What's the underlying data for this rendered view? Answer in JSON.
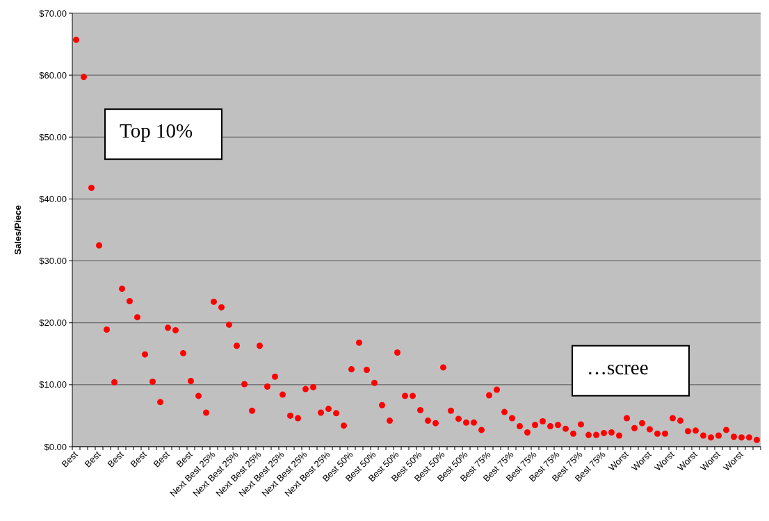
{
  "chart_data": {
    "type": "scatter",
    "ylabel": "Sales/Piece",
    "marker": "circle",
    "grid": "y",
    "categories": [
      "Best",
      null,
      null,
      "Best",
      null,
      null,
      "Best",
      null,
      null,
      "Best",
      null,
      null,
      "Best",
      null,
      null,
      "Best",
      null,
      null,
      "Next Best 25%",
      null,
      null,
      "Next Best 25%",
      null,
      null,
      "Next Best 25%",
      null,
      null,
      "Next Best 25%",
      null,
      null,
      "Next Best 25%",
      null,
      null,
      "Next Best 25%",
      null,
      null,
      "Best 50%",
      null,
      null,
      "Best 50%",
      null,
      null,
      "Best 50%",
      null,
      null,
      "Best 50%",
      null,
      null,
      "Best 50%",
      null,
      null,
      "Best 50%",
      null,
      null,
      "Best 75%",
      null,
      null,
      "Best 75%",
      null,
      null,
      "Best 75%",
      null,
      null,
      "Best 75%",
      null,
      null,
      "Best 75%",
      null,
      null,
      "Best 75%",
      null,
      null,
      "Worst",
      null,
      null,
      "Worst",
      null,
      null,
      "Worst",
      null,
      null,
      "Worst",
      null,
      null,
      "Worst",
      null,
      null,
      "Worst",
      null,
      null
    ],
    "series": [
      {
        "color": "#ff0000",
        "values": [
          65.7,
          59.7,
          41.8,
          32.5,
          18.9,
          10.4,
          25.5,
          23.5,
          20.9,
          14.9,
          10.5,
          7.2,
          19.2,
          18.8,
          15.1,
          10.6,
          8.2,
          5.5,
          23.4,
          22.5,
          19.7,
          16.3,
          10.1,
          5.8,
          16.3,
          9.7,
          11.3,
          8.4,
          5.0,
          4.6,
          9.3,
          9.6,
          5.5,
          6.1,
          5.4,
          3.4,
          12.5,
          16.8,
          12.4,
          10.3,
          6.7,
          4.2,
          15.2,
          8.2,
          8.2,
          5.9,
          4.2,
          3.8,
          12.8,
          5.8,
          4.5,
          3.9,
          3.9,
          2.7,
          8.3,
          9.2,
          5.6,
          4.6,
          3.3,
          2.3,
          3.5,
          4.1,
          3.3,
          3.5,
          2.9,
          2.1,
          3.6,
          1.9,
          1.9,
          2.2,
          2.3,
          1.8,
          4.6,
          3.0,
          3.8,
          2.8,
          2.1,
          2.1,
          4.6,
          4.2,
          2.5,
          2.6,
          1.8,
          1.5,
          1.8,
          2.7,
          1.6,
          1.5,
          1.5,
          1.1
        ]
      }
    ],
    "ylim": [
      0,
      70
    ],
    "yticks": [
      {
        "value": 0,
        "label": "$0.00"
      },
      {
        "value": 10,
        "label": "$10.00"
      },
      {
        "value": 20,
        "label": "$20.00"
      },
      {
        "value": 30,
        "label": "$30.00"
      },
      {
        "value": 40,
        "label": "$40.00"
      },
      {
        "value": 50,
        "label": "$50.00"
      },
      {
        "value": 60,
        "label": "$60.00"
      },
      {
        "value": 70,
        "label": "$70.00"
      }
    ],
    "annotations": [
      "Top 10%",
      "…scree"
    ]
  }
}
